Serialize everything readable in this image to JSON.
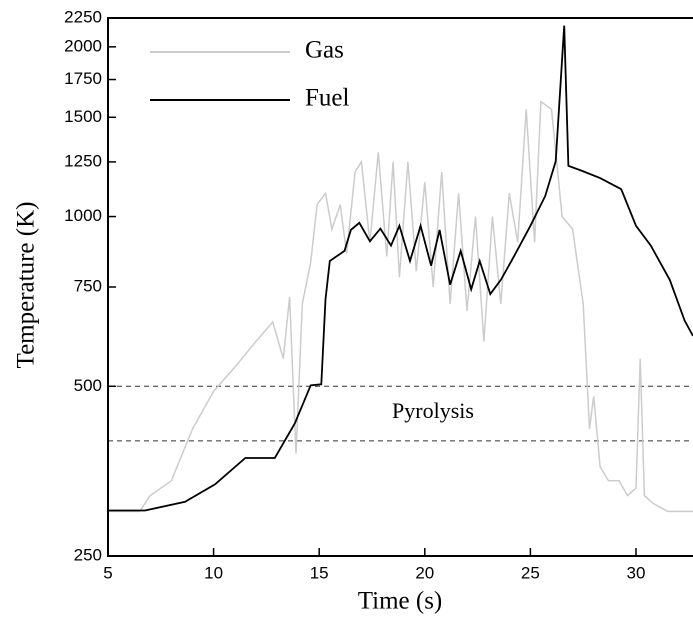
{
  "chart_data": {
    "type": "line",
    "xlabel": "Time (s)",
    "ylabel": "Temperature (K)",
    "xlim": [
      5,
      32.7
    ],
    "xticks": [
      5,
      10,
      15,
      20,
      25,
      30
    ],
    "ylim": [
      250,
      2250
    ],
    "yticks": [
      250,
      500,
      750,
      1000,
      1250,
      1500,
      1750,
      2000,
      2250
    ],
    "log_y": true,
    "legend": "upper left",
    "reference_lines": [
      500,
      400
    ],
    "annotation": "Pyrolysis",
    "series": [
      {
        "name": "Gas",
        "color": "#cccccc",
        "x": [
          5,
          6.5,
          7,
          8,
          9,
          10,
          11,
          12,
          12.8,
          13.3,
          13.6,
          13.9,
          14.2,
          14.6,
          14.9,
          15.3,
          15.6,
          16,
          16.3,
          16.7,
          17,
          17.4,
          17.8,
          18.2,
          18.5,
          18.8,
          19.2,
          19.6,
          20,
          20.4,
          20.8,
          21.2,
          21.6,
          22,
          22.4,
          22.8,
          23.2,
          23.6,
          24,
          24.4,
          24.8,
          25.2,
          25.5,
          26,
          26.5,
          27,
          27.5,
          27.8,
          28,
          28.3,
          28.7,
          29.2,
          29.6,
          30,
          30.2,
          30.4,
          30.8,
          31.5,
          32.7
        ],
        "values": [
          300,
          300,
          320,
          340,
          420,
          490,
          540,
          600,
          650,
          560,
          720,
          380,
          700,
          830,
          1050,
          1100,
          950,
          1050,
          860,
          1200,
          1250,
          900,
          1300,
          850,
          1250,
          780,
          1250,
          800,
          1150,
          750,
          1200,
          700,
          1100,
          680,
          1000,
          600,
          1000,
          700,
          1100,
          900,
          1550,
          900,
          1600,
          1550,
          1000,
          950,
          700,
          420,
          480,
          360,
          340,
          340,
          320,
          330,
          560,
          320,
          310,
          300,
          300
        ]
      },
      {
        "name": "Fuel",
        "color": "#000000",
        "x": [
          5,
          6.75,
          8.65,
          10.07,
          11.5,
          12.9,
          13.4,
          13.85,
          14.6,
          15.1,
          15.3,
          15.5,
          16.2,
          16.5,
          16.9,
          17.4,
          17.9,
          18.4,
          18.8,
          19.3,
          19.8,
          20.3,
          20.7,
          21.2,
          21.7,
          22.2,
          22.6,
          23.1,
          23.6,
          24.1,
          24.5,
          25,
          25.7,
          26.2,
          26.6,
          26.8,
          27.4,
          28.3,
          29.3,
          30,
          30.7,
          31.6,
          32.3,
          32.7
        ],
        "values": [
          301,
          301,
          312,
          335,
          373,
          373,
          402,
          430,
          502,
          504,
          713,
          834,
          869,
          947,
          975,
          904,
          952,
          888,
          963,
          834,
          963,
          818,
          947,
          757,
          869,
          743,
          834,
          729,
          772,
          834,
          888,
          963,
          1087,
          1253,
          2180,
          1230,
          1207,
          1170,
          1118,
          963,
          888,
          772,
          654,
          614
        ]
      }
    ]
  }
}
